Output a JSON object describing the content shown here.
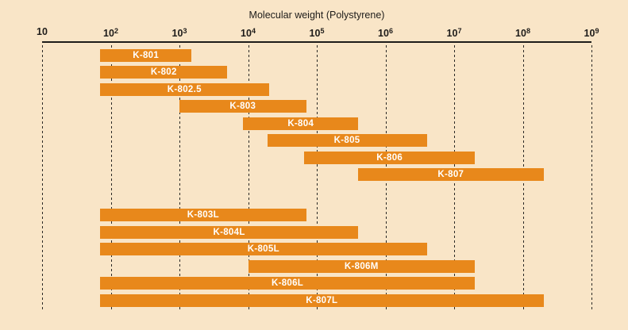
{
  "page": {
    "background_color": "#f9e5c7",
    "bar_color": "#e8881b",
    "bar_label_color": "#ffffff",
    "axis_color": "#1e1c1a",
    "gridline_color": "#2b2926"
  },
  "chart_data": {
    "type": "bar",
    "orientation": "horizontal-range",
    "title": "Molecular weight (Polystyrene)",
    "x_axis": {
      "scale": "log",
      "base": 10,
      "min": 10,
      "max": 1000000000,
      "tick_exponents": [
        1,
        2,
        3,
        4,
        5,
        6,
        7,
        8,
        9
      ],
      "gridlines": "dashed-vertical"
    },
    "legend": "none",
    "series": [
      {
        "name": "K-801",
        "mw_min": 70,
        "mw_max": 1500,
        "group": 1
      },
      {
        "name": "K-802",
        "mw_min": 70,
        "mw_max": 5000,
        "group": 1
      },
      {
        "name": "K-802.5",
        "mw_min": 70,
        "mw_max": 20000,
        "group": 1
      },
      {
        "name": "K-803",
        "mw_min": 1000,
        "mw_max": 70000,
        "group": 1
      },
      {
        "name": "K-804",
        "mw_min": 8500,
        "mw_max": 400000,
        "group": 1
      },
      {
        "name": "K-805",
        "mw_min": 19000,
        "mw_max": 4000000,
        "group": 1
      },
      {
        "name": "K-806",
        "mw_min": 66000,
        "mw_max": 20000000,
        "group": 1
      },
      {
        "name": "K-807",
        "mw_min": 400000,
        "mw_max": 200000000,
        "group": 1
      },
      {
        "name": "K-803L",
        "mw_min": 70,
        "mw_max": 70000,
        "group": 2
      },
      {
        "name": "K-804L",
        "mw_min": 70,
        "mw_max": 400000,
        "group": 2
      },
      {
        "name": "K-805L",
        "mw_min": 70,
        "mw_max": 4000000,
        "group": 2
      },
      {
        "name": "K-806M",
        "mw_min": 10000,
        "mw_max": 20000000,
        "group": 2
      },
      {
        "name": "K-806L",
        "mw_min": 70,
        "mw_max": 20000000,
        "group": 2
      },
      {
        "name": "K-807L",
        "mw_min": 70,
        "mw_max": 200000000,
        "group": 2
      }
    ]
  }
}
